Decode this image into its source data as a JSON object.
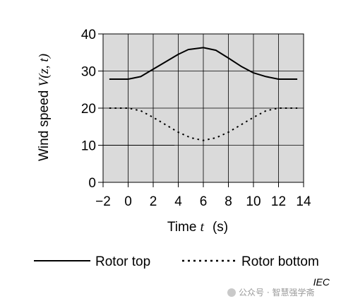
{
  "chart_data": {
    "type": "line",
    "xlabel_text": "Time ",
    "xlabel_var": "t",
    "xlabel_unit": "(s)",
    "ylabel_text": "Wind speed ",
    "ylabel_var": "V(z, t)",
    "xlim": [
      -2,
      14
    ],
    "ylim": [
      0,
      40
    ],
    "xticks": [
      -2,
      0,
      2,
      4,
      6,
      8,
      10,
      12,
      14
    ],
    "yticks": [
      0,
      10,
      20,
      30,
      40
    ],
    "grid": true,
    "series": [
      {
        "name": "Rotor top",
        "style": "solid",
        "color": "#000000",
        "x": [
          -1.5,
          0,
          1,
          2,
          3,
          4,
          4.8,
          6,
          7,
          8,
          9,
          10,
          11,
          12,
          13.5
        ],
        "y": [
          27.8,
          27.8,
          28.5,
          30.5,
          32.5,
          34.5,
          35.8,
          36.3,
          35.6,
          33.5,
          31.3,
          29.5,
          28.5,
          27.8,
          27.8
        ]
      },
      {
        "name": "Rotor bottom",
        "style": "dotted",
        "color": "#000000",
        "x": [
          -1.5,
          0,
          1,
          2,
          3,
          4,
          5,
          6,
          7,
          8,
          9,
          10,
          11,
          12,
          13.5
        ],
        "y": [
          20,
          20,
          19.3,
          17.5,
          15.5,
          13.5,
          12,
          11.3,
          12,
          13.5,
          15.5,
          17.5,
          19.3,
          20,
          20
        ]
      }
    ],
    "extra_lines": [
      {
        "x": [
          -2,
          3.7
        ],
        "y": [
          10,
          10
        ],
        "style": "thin"
      }
    ],
    "legend_position": "bottom",
    "source": "IEC",
    "watermark": "公众号 · 智慧强学斋"
  }
}
